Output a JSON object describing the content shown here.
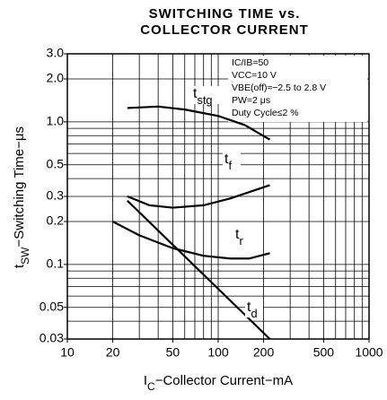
{
  "chart_data": {
    "type": "line",
    "title": [
      "SWITCHING TIME vs.",
      "COLLECTOR CURRENT"
    ],
    "xlabel": "IC−Collector Current−mA",
    "ylabel": "tSW−Switching Time−μs",
    "annotations": [
      "IC/IB=50",
      "VCC=10 V",
      "VBE(off)≈−2.5 to 2.8 V",
      "PW=2 μs",
      "Duty Cycle≤2 %"
    ],
    "xscale": "log",
    "yscale": "log",
    "grid": true,
    "xlim": [
      10,
      1000
    ],
    "ylim": [
      0.03,
      3
    ],
    "xticks": [
      10,
      20,
      50,
      100,
      200,
      500,
      1000
    ],
    "yticks": [
      {
        "value": 3,
        "label": "3.0"
      },
      {
        "value": 2,
        "label": "2.0"
      },
      {
        "value": 1,
        "label": "1.0"
      },
      0.5,
      0.3,
      0.2,
      0.1,
      0.05,
      0.03
    ],
    "xgrid": [
      10,
      20,
      30,
      40,
      50,
      60,
      70,
      80,
      90,
      100,
      200,
      300,
      400,
      500,
      600,
      700,
      800,
      900,
      1000
    ],
    "ygrid": [
      0.03,
      0.04,
      0.05,
      0.06,
      0.07,
      0.08,
      0.09,
      0.1,
      0.2,
      0.3,
      0.4,
      0.5,
      0.6,
      0.7,
      0.8,
      0.9,
      1,
      2,
      3
    ],
    "series": [
      {
        "name": "tstg",
        "color": "#000000",
        "x": [
          25,
          40,
          60,
          100,
          150,
          220
        ],
        "values": [
          1.25,
          1.28,
          1.22,
          1.1,
          0.95,
          0.75
        ]
      },
      {
        "name": "tf",
        "color": "#000000",
        "x": [
          25,
          35,
          50,
          80,
          120,
          220
        ],
        "values": [
          0.3,
          0.26,
          0.25,
          0.26,
          0.29,
          0.36
        ]
      },
      {
        "name": "tr",
        "color": "#000000",
        "x": [
          20,
          30,
          50,
          80,
          120,
          160,
          220
        ],
        "values": [
          0.2,
          0.16,
          0.13,
          0.115,
          0.11,
          0.11,
          0.12
        ]
      },
      {
        "name": "td",
        "color": "#000000",
        "x": [
          25,
          220
        ],
        "values": [
          0.28,
          0.03
        ]
      }
    ]
  }
}
